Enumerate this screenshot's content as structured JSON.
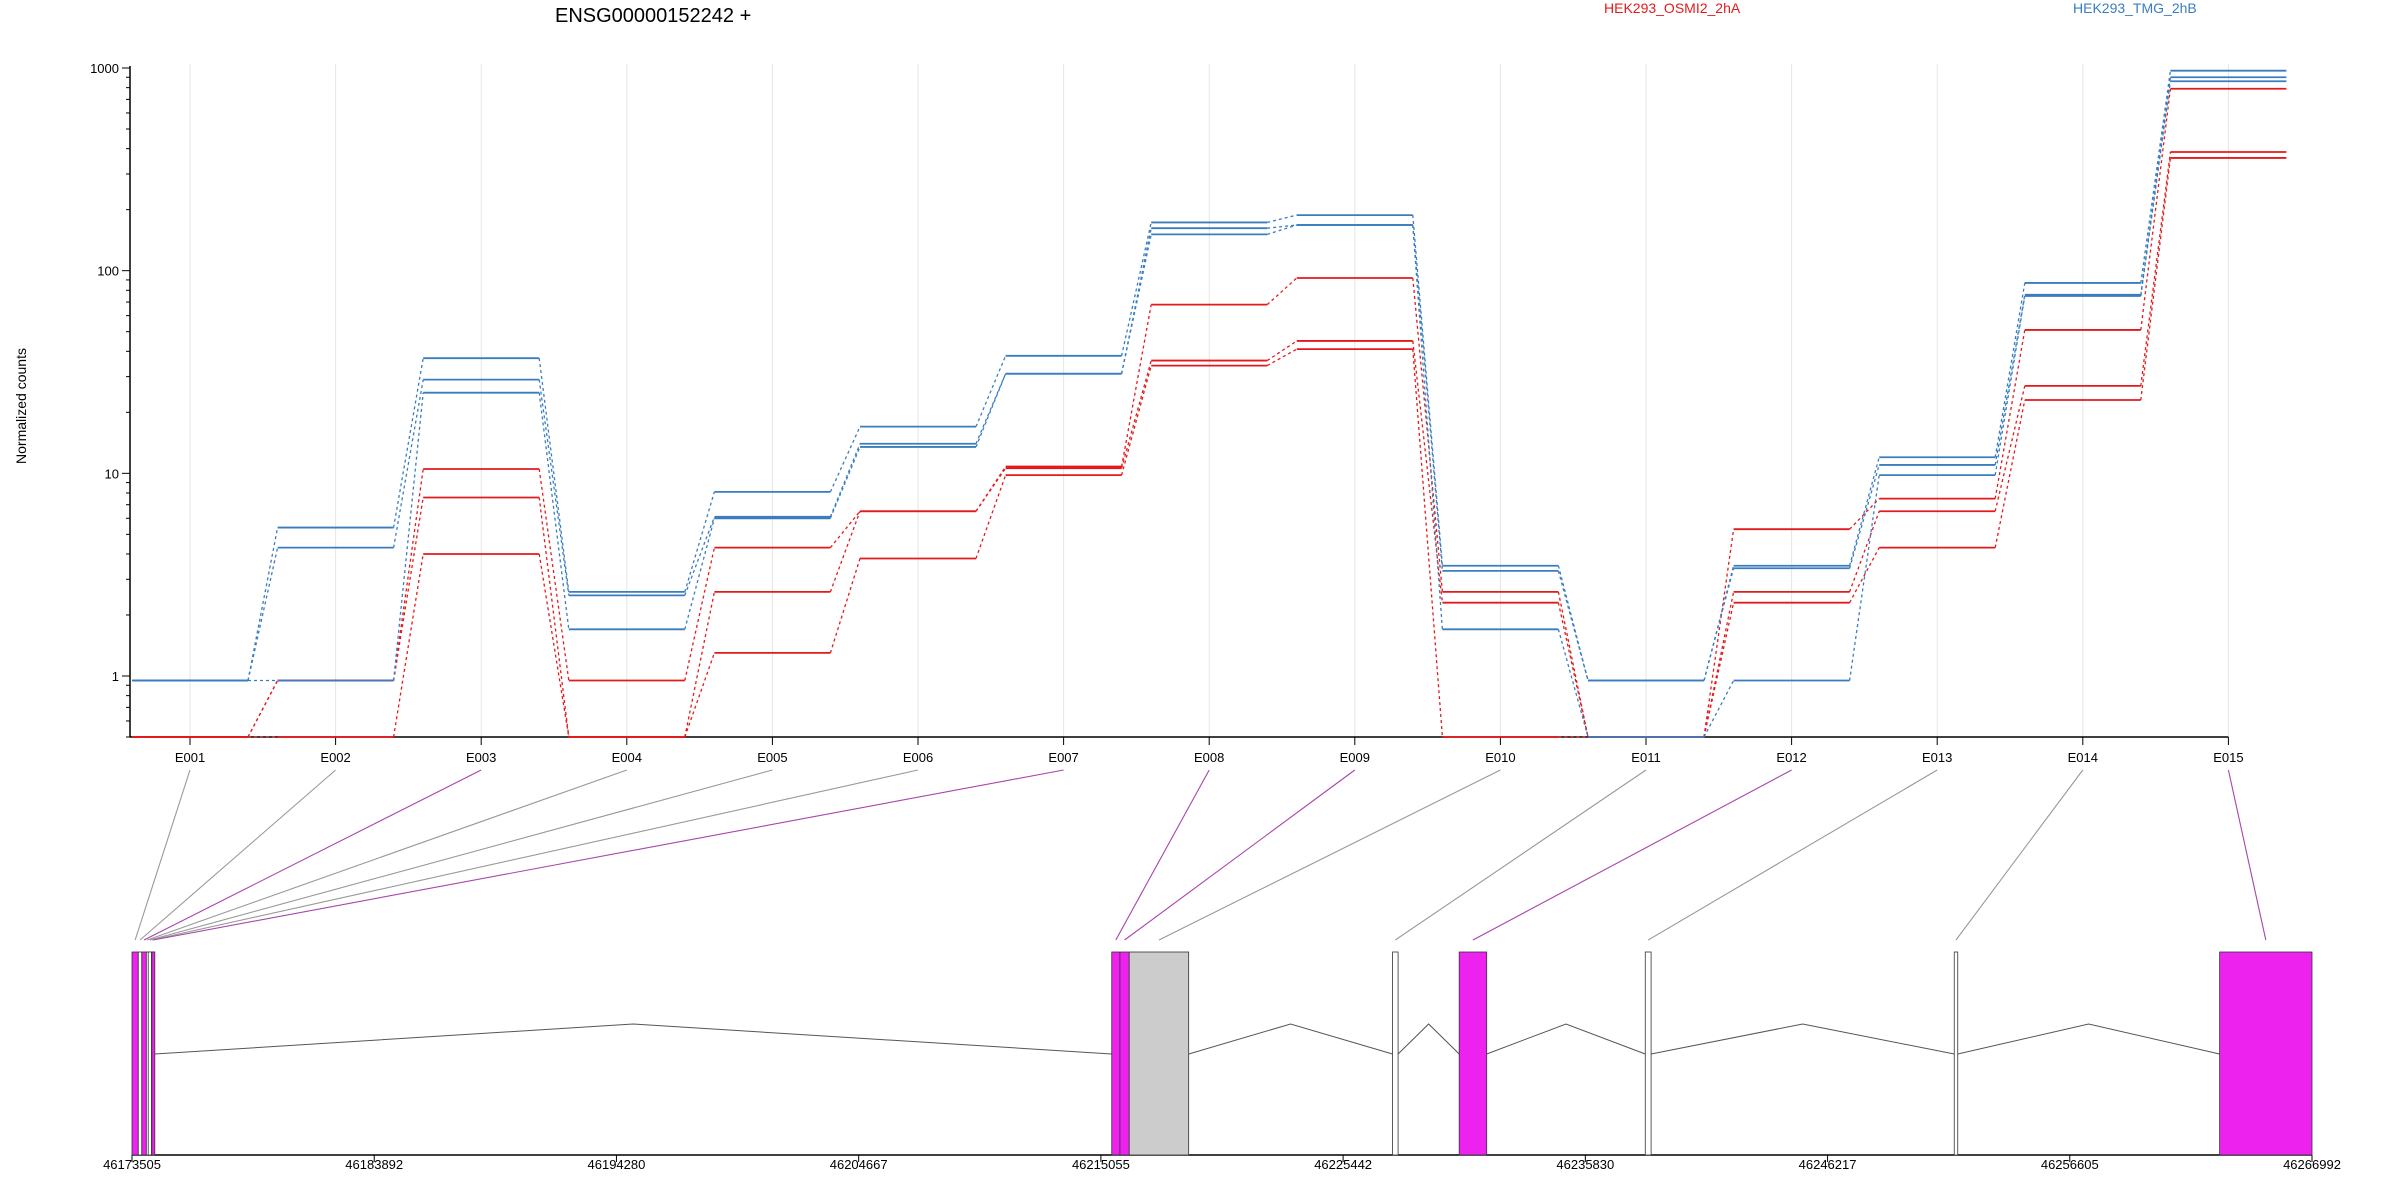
{
  "chart_data": {
    "type": "line",
    "title": "ENSG00000152242 +",
    "ylabel": "Normalized counts",
    "yscale": "log",
    "ylim": [
      0.5,
      1000
    ],
    "yticks": [
      "1",
      "10",
      "100",
      "1000"
    ],
    "categories": [
      "E001",
      "E002",
      "E003",
      "E004",
      "E005",
      "E006",
      "E007",
      "E008",
      "E009",
      "E010",
      "E011",
      "E012",
      "E013",
      "E014",
      "E015"
    ],
    "grid": "vertical",
    "legend_position": "top",
    "series": [
      {
        "name": "HEK293_OSMI2_2hA",
        "group": "HEK293_OSMI2_2hA",
        "color": "#e31a1c",
        "values": [
          0.5,
          0.95,
          10.5,
          0.95,
          4.3,
          6.5,
          10.8,
          68,
          92,
          2.6,
          0.5,
          5.3,
          7.5,
          51,
          790
        ]
      },
      {
        "group": "HEK293_OSMI2_2hA",
        "color": "#e31a1c",
        "values": [
          0.5,
          0.95,
          7.6,
          0.5,
          2.6,
          6.5,
          10.6,
          36,
          45,
          2.3,
          0.5,
          2.6,
          6.5,
          27,
          385
        ]
      },
      {
        "group": "HEK293_OSMI2_2hA",
        "color": "#e31a1c",
        "values": [
          0.5,
          0.5,
          4.0,
          0.5,
          1.3,
          3.8,
          9.8,
          34,
          41,
          0.5,
          0.5,
          2.3,
          4.3,
          23,
          360
        ]
      },
      {
        "name": "HEK293_TMG_2hB",
        "group": "HEK293_TMG_2hB",
        "color": "#3a7dbf",
        "values": [
          0.95,
          5.4,
          37,
          2.6,
          8.1,
          17,
          38,
          173,
          188,
          3.5,
          0.95,
          3.5,
          12,
          87,
          970
        ]
      },
      {
        "group": "HEK293_TMG_2hB",
        "color": "#3a7dbf",
        "values": [
          0.95,
          4.3,
          29,
          2.5,
          6.1,
          14,
          31,
          162,
          168,
          3.3,
          0.95,
          3.4,
          11,
          76,
          900
        ]
      },
      {
        "group": "HEK293_TMG_2hB",
        "color": "#3a7dbf",
        "values": [
          0.95,
          0.95,
          25,
          1.7,
          6.0,
          13.5,
          31,
          151,
          168,
          1.7,
          0.5,
          0.95,
          9.8,
          75,
          860
        ]
      }
    ],
    "gene_model": {
      "coordinate_ticks": [
        "46173505",
        "46183892",
        "46194280",
        "46204667",
        "46215055",
        "46225442",
        "46235830",
        "46246217",
        "46256605",
        "46266992"
      ],
      "range": [
        46173505,
        46266992
      ],
      "exons": [
        {
          "id": "E001",
          "start": 46173505,
          "end": 46173775,
          "color": "#ee22ee"
        },
        {
          "id": "E002",
          "start": 46173775,
          "end": 46173925,
          "color": "#ffffff"
        },
        {
          "id": "E003",
          "start": 46173925,
          "end": 46174120,
          "color": "#ee22ee"
        },
        {
          "id": "E004",
          "start": 46174120,
          "end": 46174200,
          "color": "#ffffff"
        },
        {
          "id": "E005",
          "start": 46174200,
          "end": 46174345,
          "color": "#ffffff"
        },
        {
          "id": "E006",
          "start": 46174345,
          "end": 46174355,
          "color": "#ffffff"
        },
        {
          "id": "E007",
          "start": 46174355,
          "end": 46174475,
          "color": "#ee22ee"
        },
        {
          "id": "E008",
          "start": 46215520,
          "end": 46215870,
          "color": "#ee22ee"
        },
        {
          "id": "E009",
          "start": 46215870,
          "end": 46216270,
          "color": "#ee22ee"
        },
        {
          "id": "E010",
          "start": 46216270,
          "end": 46218820,
          "color": "#cccccc"
        },
        {
          "id": "E011",
          "start": 46227560,
          "end": 46227800,
          "color": "#ffffff"
        },
        {
          "id": "E012",
          "start": 46230420,
          "end": 46231600,
          "color": "#ee22ee"
        },
        {
          "id": "E013",
          "start": 46238400,
          "end": 46238650,
          "color": "#ffffff"
        },
        {
          "id": "E014",
          "start": 46251650,
          "end": 46251800,
          "color": "#ffffff"
        },
        {
          "id": "E015",
          "start": 46263030,
          "end": 46266992,
          "color": "#ee22ee"
        }
      ],
      "connector_colors": [
        "#999999",
        "#999999",
        "#aa44aa",
        "#999999",
        "#999999",
        "#999999",
        "#aa44aa",
        "#aa44aa",
        "#aa44aa",
        "#999999",
        "#999999",
        "#aa44aa",
        "#999999",
        "#999999",
        "#aa44aa"
      ]
    }
  }
}
